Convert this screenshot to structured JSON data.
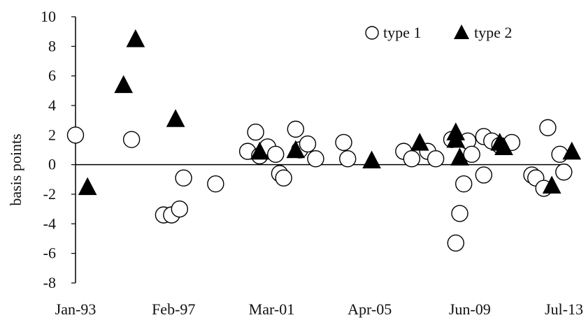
{
  "chart_data": {
    "type": "scatter",
    "title": "",
    "xlabel": "",
    "ylabel": "basis points",
    "ylim": [
      -8,
      10
    ],
    "yticks": [
      -8,
      -6,
      -4,
      -2,
      0,
      2,
      4,
      6,
      8,
      10
    ],
    "xlim": [
      "1993-01",
      "2013-07"
    ],
    "xticks": [
      "Jan-93",
      "Feb-97",
      "Mar-01",
      "Apr-05",
      "Jun-09",
      "Jul-13"
    ],
    "grid": false,
    "legend": "top-right",
    "series": [
      {
        "name": "type 1",
        "marker": "open-circle",
        "color": "#000000",
        "points": [
          {
            "x": "1993-01",
            "y": 2.0
          },
          {
            "x": "1995-05",
            "y": 1.7
          },
          {
            "x": "1996-09",
            "y": -3.4
          },
          {
            "x": "1997-01",
            "y": -3.4
          },
          {
            "x": "1997-05",
            "y": -3.0
          },
          {
            "x": "1997-07",
            "y": -0.9
          },
          {
            "x": "1998-11",
            "y": -1.3
          },
          {
            "x": "2000-03",
            "y": 0.9
          },
          {
            "x": "2000-07",
            "y": 2.2
          },
          {
            "x": "2000-09",
            "y": 0.6
          },
          {
            "x": "2001-01",
            "y": 1.2
          },
          {
            "x": "2001-05",
            "y": 0.7
          },
          {
            "x": "2001-07",
            "y": -0.6
          },
          {
            "x": "2001-09",
            "y": -0.9
          },
          {
            "x": "2002-03",
            "y": 2.4
          },
          {
            "x": "2002-05",
            "y": 1.0
          },
          {
            "x": "2002-09",
            "y": 1.4
          },
          {
            "x": "2003-01",
            "y": 0.4
          },
          {
            "x": "2004-03",
            "y": 1.5
          },
          {
            "x": "2004-05",
            "y": 0.4
          },
          {
            "x": "2006-09",
            "y": 0.9
          },
          {
            "x": "2007-01",
            "y": 0.4
          },
          {
            "x": "2007-09",
            "y": 0.9
          },
          {
            "x": "2008-01",
            "y": 0.4
          },
          {
            "x": "2008-09",
            "y": 1.7
          },
          {
            "x": "2008-11",
            "y": -5.3
          },
          {
            "x": "2009-01",
            "y": -3.3
          },
          {
            "x": "2009-03",
            "y": -1.3
          },
          {
            "x": "2009-05",
            "y": 1.6
          },
          {
            "x": "2009-07",
            "y": 0.7
          },
          {
            "x": "2010-01",
            "y": 1.9
          },
          {
            "x": "2010-01",
            "y": -0.7
          },
          {
            "x": "2010-05",
            "y": 1.6
          },
          {
            "x": "2010-09",
            "y": 1.3
          },
          {
            "x": "2011-03",
            "y": 1.5
          },
          {
            "x": "2012-01",
            "y": -0.7
          },
          {
            "x": "2012-03",
            "y": -0.9
          },
          {
            "x": "2012-07",
            "y": -1.6
          },
          {
            "x": "2012-09",
            "y": 2.5
          },
          {
            "x": "2013-03",
            "y": 0.7
          },
          {
            "x": "2013-05",
            "y": -0.5
          }
        ]
      },
      {
        "name": "type 2",
        "marker": "filled-triangle",
        "color": "#000000",
        "points": [
          {
            "x": "1993-07",
            "y": -1.6
          },
          {
            "x": "1995-01",
            "y": 5.3
          },
          {
            "x": "1995-07",
            "y": 8.4
          },
          {
            "x": "1997-03",
            "y": 3.0
          },
          {
            "x": "2000-09",
            "y": 0.8
          },
          {
            "x": "2002-03",
            "y": 0.9
          },
          {
            "x": "2005-05",
            "y": 0.2
          },
          {
            "x": "2007-05",
            "y": 1.4
          },
          {
            "x": "2008-11",
            "y": 2.1
          },
          {
            "x": "2008-11",
            "y": 1.6
          },
          {
            "x": "2009-01",
            "y": 0.4
          },
          {
            "x": "2010-09",
            "y": 1.4
          },
          {
            "x": "2010-11",
            "y": 1.1
          },
          {
            "x": "2012-11",
            "y": -1.5
          },
          {
            "x": "2013-09",
            "y": 0.8
          }
        ]
      }
    ]
  }
}
